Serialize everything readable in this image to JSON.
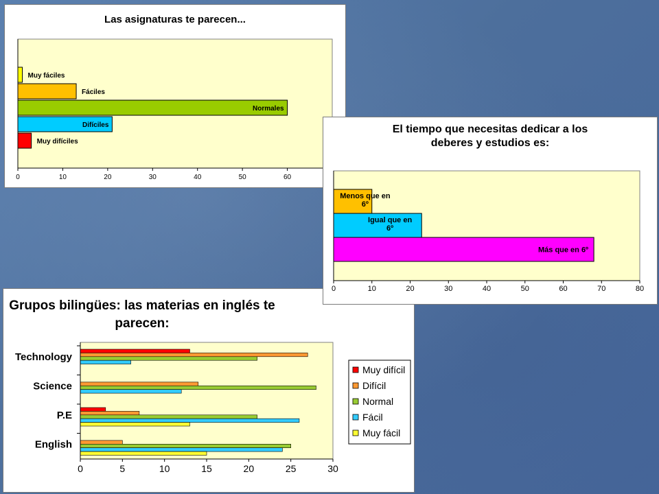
{
  "chart_data": [
    {
      "type": "bar",
      "orientation": "horizontal",
      "title": "Las asignaturas  te parecen...",
      "categories": [
        "Muy fáciles",
        "Fáciles",
        "Normales",
        "Difíciles",
        "Muy difíciles"
      ],
      "values": [
        1,
        13,
        60,
        21,
        3
      ],
      "colors": [
        "#ffff00",
        "#ffc000",
        "#99cc00",
        "#00ccff",
        "#ff0000"
      ],
      "xlim": [
        0,
        70
      ],
      "xticks": [
        "0",
        "10",
        "20",
        "30",
        "40",
        "50",
        "60"
      ],
      "grid": false,
      "plot_background": "#ffffcc"
    },
    {
      "type": "bar",
      "orientation": "horizontal",
      "title_lines": [
        "El tiempo que necesitas dedicar a los",
        "deberes y estudios es:"
      ],
      "categories": [
        "Menos que en 6º",
        "Igual que en 6º",
        "Más que en 6º"
      ],
      "label_lines": [
        [
          "Menos que en",
          "6º"
        ],
        [
          "Igual que en",
          "6º"
        ],
        [
          "Más que en 6º"
        ]
      ],
      "values": [
        10,
        23,
        68
      ],
      "colors": [
        "#ffc000",
        "#00ccff",
        "#ff00ff"
      ],
      "xlim": [
        0,
        80
      ],
      "xticks": [
        "0",
        "10",
        "20",
        "30",
        "40",
        "50",
        "60",
        "70",
        "80"
      ],
      "grid": false,
      "plot_background": "#ffffcc"
    },
    {
      "type": "bar",
      "orientation": "horizontal",
      "title_lines": [
        "Grupos bilingües: las materias en inglés te",
        "parecen:"
      ],
      "categories": [
        "Technology",
        "Science",
        "P.E",
        "English"
      ],
      "series": [
        {
          "name": "Muy difícil",
          "color": "#ff0000",
          "values": [
            13,
            0,
            3,
            0
          ]
        },
        {
          "name": "Difícil",
          "color": "#ff9933",
          "values": [
            27,
            14,
            7,
            5
          ]
        },
        {
          "name": "Normal",
          "color": "#99cc33",
          "values": [
            21,
            28,
            21,
            25
          ]
        },
        {
          "name": "Fácil",
          "color": "#33ccff",
          "values": [
            6,
            12,
            26,
            24
          ]
        },
        {
          "name": "Muy fácil",
          "color": "#ffff33",
          "values": [
            0,
            0,
            13,
            15
          ]
        }
      ],
      "xlim": [
        0,
        30
      ],
      "xticks": [
        "0",
        "5",
        "10",
        "15",
        "20",
        "25",
        "30"
      ],
      "legend": "right",
      "grid": false,
      "plot_background": "#ffffcc"
    }
  ]
}
